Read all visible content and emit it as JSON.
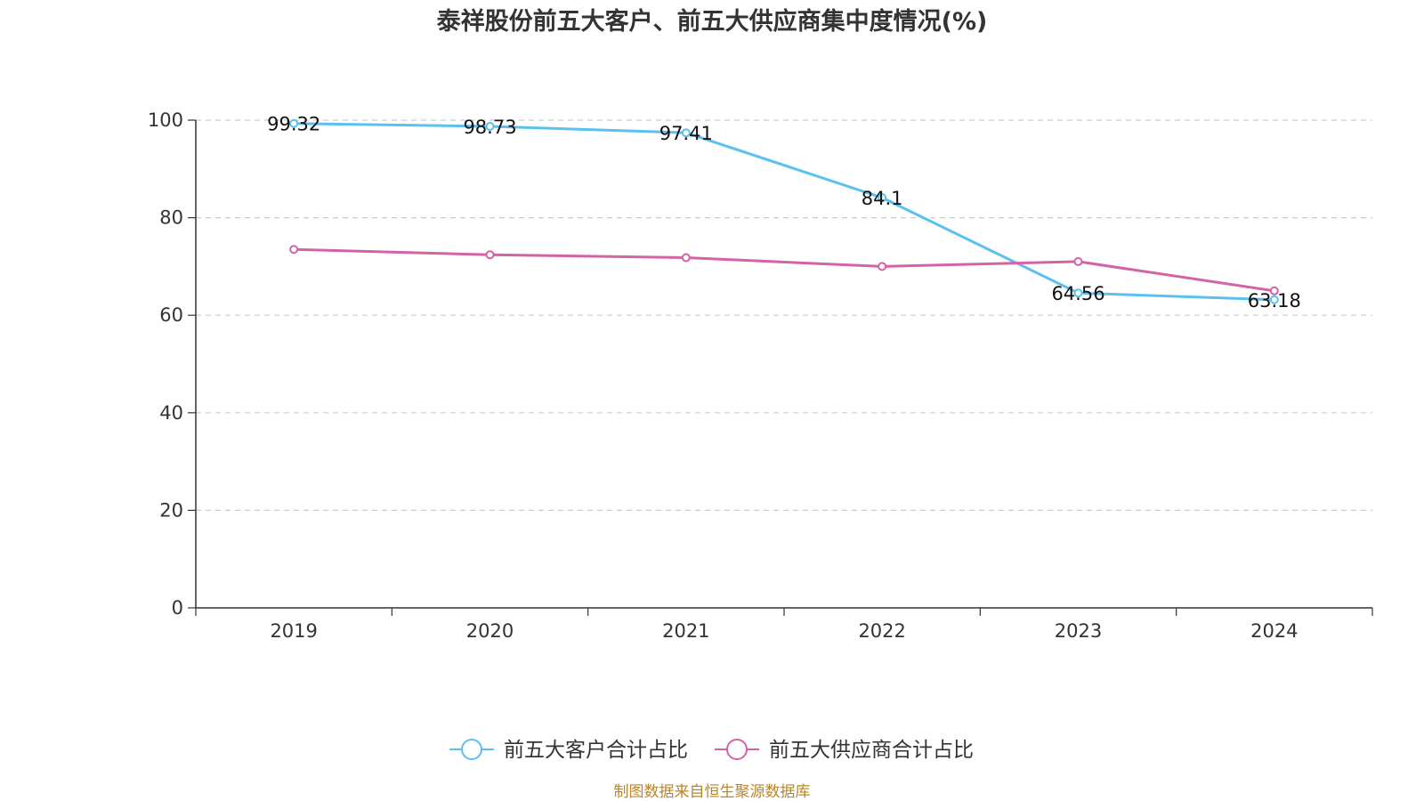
{
  "chart_data": {
    "type": "line",
    "title": "泰祥股份前五大客户、前五大供应商集中度情况(%)",
    "categories": [
      "2019",
      "2020",
      "2021",
      "2022",
      "2023",
      "2024"
    ],
    "y_ticks": [
      "0",
      "20",
      "40",
      "60",
      "80",
      "100"
    ],
    "ylim": [
      0,
      100
    ],
    "grid": true,
    "legend_position": "bottom",
    "series": [
      {
        "name": "前五大客户合计占比",
        "color": "#5bc0f0",
        "values": [
          99.32,
          98.73,
          97.41,
          84.1,
          64.56,
          63.18
        ],
        "labels": [
          "99.32",
          "98.73",
          "97.41",
          "84.1",
          "64.56",
          "63.18"
        ],
        "show_labels": true
      },
      {
        "name": "前五大供应商合计占比",
        "color": "#d462a6",
        "values": [
          73.5,
          72.4,
          71.8,
          70.0,
          71.0,
          65.0
        ],
        "show_labels": false
      }
    ]
  },
  "source_note": "制图数据来自恒生聚源数据库"
}
